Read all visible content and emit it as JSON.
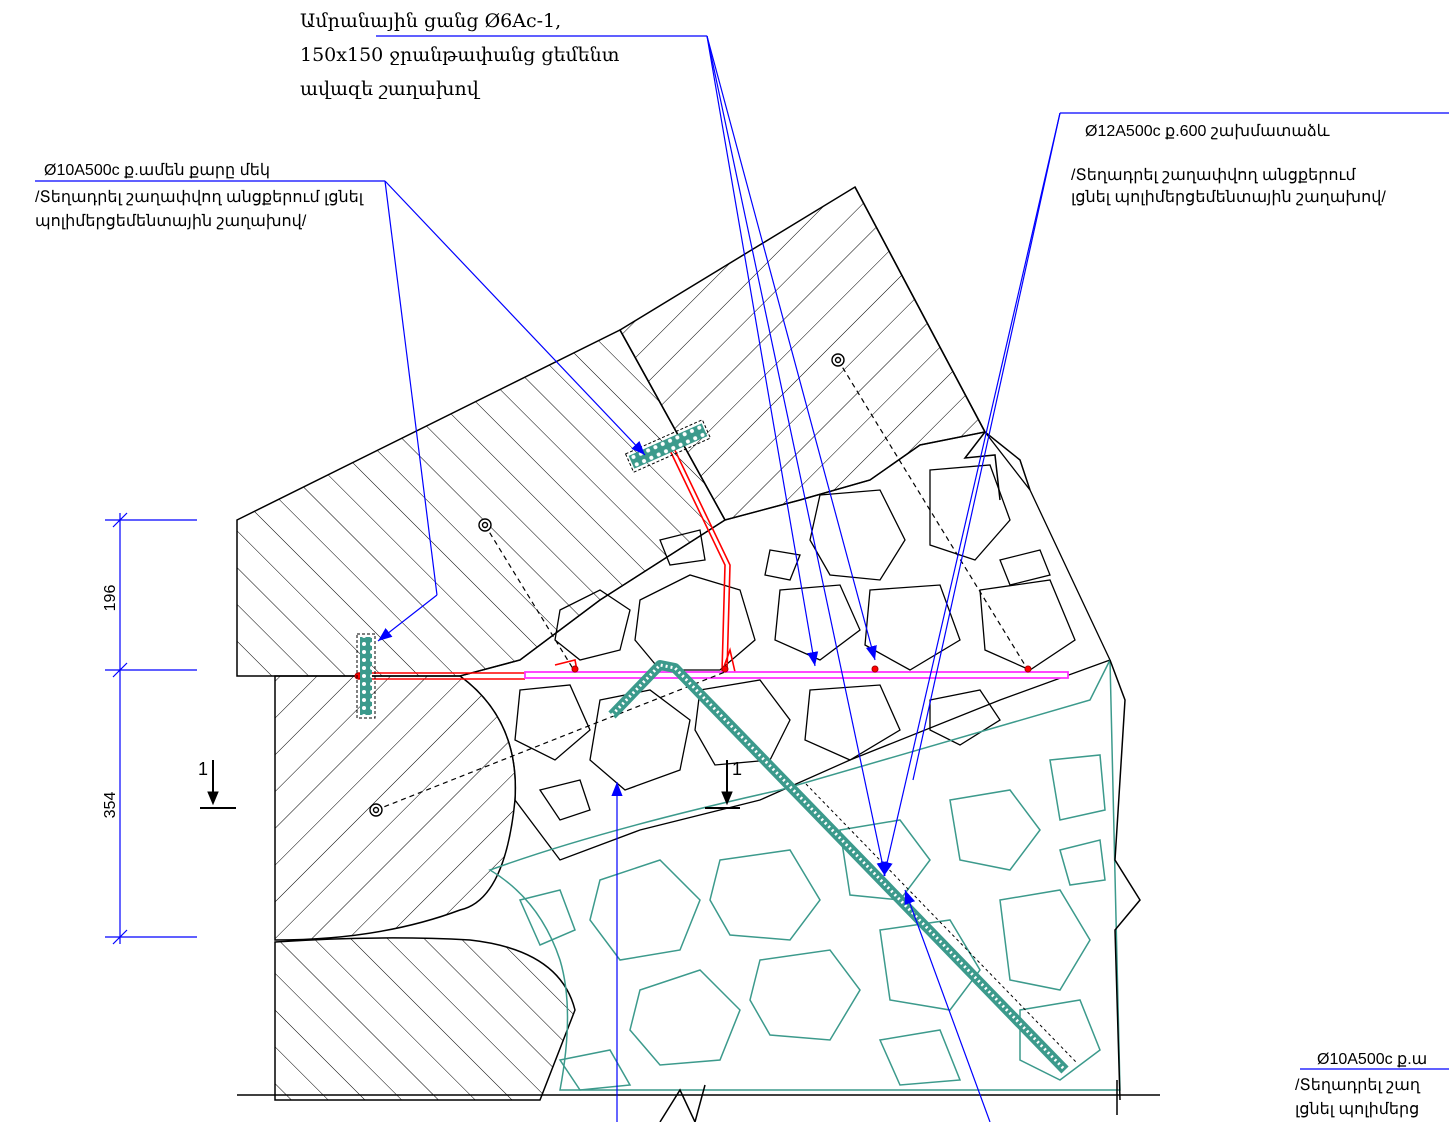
{
  "callouts": {
    "mesh": {
      "line1": "Ամրանային ցանց Ø6Ac-1,",
      "line2": "150x150 ջրանթափանց ցեմենտ",
      "line3": "ավազե շաղախով"
    },
    "rebar_top_right": {
      "title": "Ø12A500c ք.600 շախմատաձև",
      "line2": "/Տեղադրել շաղափվող անցքերում",
      "line3": "լցնել պոլիմերցեմենտային շաղախով/"
    },
    "rebar_left": {
      "title": "Ø10A500c ք.ամեն քարը մեկ",
      "line2": "/Տեղադրել շաղափվող անցքերում լցնել",
      "line3": "պոլիմերցեմենտային շաղախով/"
    },
    "rebar_bottom_right": {
      "title": "Ø10A500c ք.ա",
      "line2": "/Տեղադրել շաղ",
      "line3": "լցնել պոլիմերց"
    }
  },
  "dimensions": {
    "upper": "196",
    "lower": "354"
  },
  "section_marks": {
    "left": "1",
    "right": "1"
  },
  "colors": {
    "leader_blue": "#0000ff",
    "rebar_red": "#ff0000",
    "rod_magenta": "#ff33ff",
    "mesh_teal": "#3c9a8c",
    "linework": "#000000"
  }
}
